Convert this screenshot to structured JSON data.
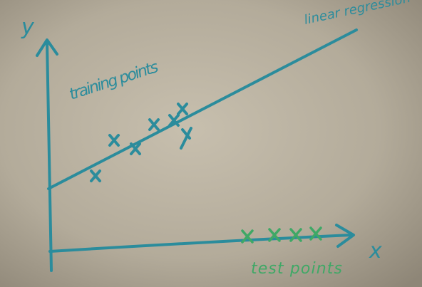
{
  "labels": {
    "y_axis": "y",
    "x_axis": "x",
    "training": "training points",
    "model": "linear regression",
    "test": "test points"
  }
}
